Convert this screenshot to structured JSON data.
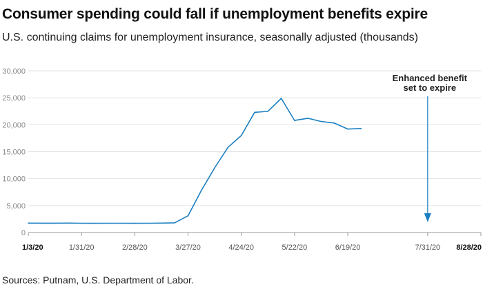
{
  "header": {
    "title": "Consumer spending could fall if unemployment benefits expire",
    "subtitle": "U.S. continuing claims for unemployment insurance, seasonally adjusted (thousands)"
  },
  "footer": {
    "source": "Sources: Putnam, U.S. Department of Labor."
  },
  "colors": {
    "line": "#1a7fc1",
    "grid": "#e3e3e3",
    "axis": "#999999"
  },
  "chart_data": {
    "type": "line",
    "title": "Consumer spending could fall if unemployment benefits expire",
    "subtitle": "U.S. continuing claims for unemployment insurance, seasonally adjusted (thousands)",
    "ylim": [
      0,
      30000
    ],
    "xlim": [
      "2020-01-03",
      "2020-08-28"
    ],
    "y_ticks": [
      0,
      5000,
      10000,
      15000,
      20000,
      25000,
      30000
    ],
    "y_tick_labels": [
      "0",
      "5,000",
      "10,000",
      "15,000",
      "20,000",
      "25,000",
      "30,000"
    ],
    "x_ticks": [
      {
        "date": "2020-01-03",
        "label": "1/3/20",
        "bold": true
      },
      {
        "date": "2020-01-31",
        "label": "1/31/20",
        "bold": false
      },
      {
        "date": "2020-02-28",
        "label": "2/28/20",
        "bold": false
      },
      {
        "date": "2020-03-27",
        "label": "3/27/20",
        "bold": false
      },
      {
        "date": "2020-04-24",
        "label": "4/24/20",
        "bold": false
      },
      {
        "date": "2020-05-22",
        "label": "5/22/20",
        "bold": false
      },
      {
        "date": "2020-06-19",
        "label": "6/19/20",
        "bold": false
      },
      {
        "date": "2020-07-31",
        "label": "7/31/20",
        "bold": false
      },
      {
        "date": "2020-08-28",
        "label": "8/28/20",
        "bold": true
      }
    ],
    "grid": true,
    "series": [
      {
        "points": [
          [
            "2020-01-03",
            1750
          ],
          [
            "2020-01-10",
            1740
          ],
          [
            "2020-01-17",
            1730
          ],
          [
            "2020-01-24",
            1750
          ],
          [
            "2020-01-31",
            1720
          ],
          [
            "2020-02-07",
            1710
          ],
          [
            "2020-02-14",
            1720
          ],
          [
            "2020-02-21",
            1720
          ],
          [
            "2020-02-28",
            1710
          ],
          [
            "2020-03-06",
            1720
          ],
          [
            "2020-03-13",
            1750
          ],
          [
            "2020-03-20",
            1800
          ],
          [
            "2020-03-27",
            3100
          ],
          [
            "2020-04-03",
            7800
          ],
          [
            "2020-04-10",
            12000
          ],
          [
            "2020-04-17",
            15800
          ],
          [
            "2020-04-24",
            18000
          ],
          [
            "2020-05-01",
            22300
          ],
          [
            "2020-05-08",
            22500
          ],
          [
            "2020-05-15",
            24900
          ],
          [
            "2020-05-22",
            20800
          ],
          [
            "2020-05-29",
            21200
          ],
          [
            "2020-06-05",
            20600
          ],
          [
            "2020-06-12",
            20300
          ],
          [
            "2020-06-19",
            19200
          ],
          [
            "2020-06-26",
            19300
          ]
        ]
      }
    ],
    "annotations": [
      {
        "date": "2020-07-31",
        "text_lines": [
          "Enhanced benefit",
          "set to expire"
        ],
        "arrow": "down"
      }
    ]
  }
}
